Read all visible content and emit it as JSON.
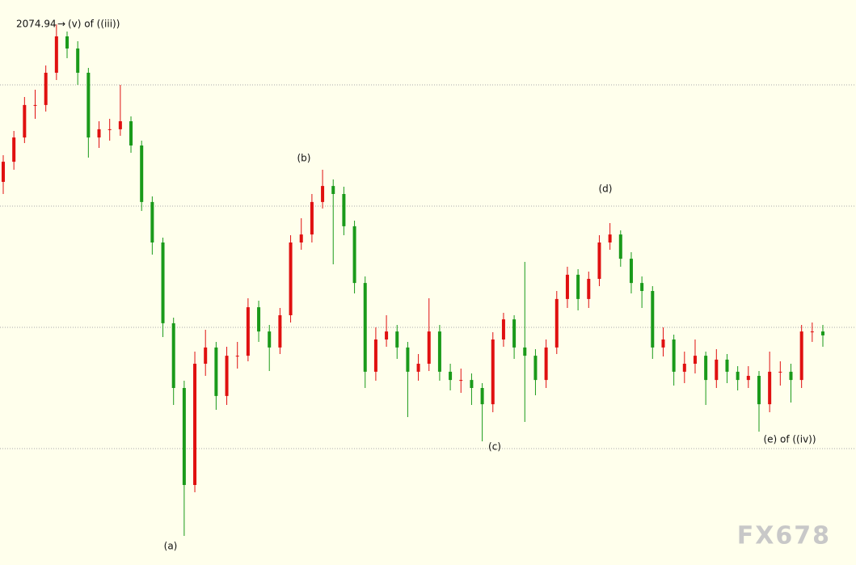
{
  "chart_data": {
    "type": "candlestick",
    "open": [
      2010,
      2018.3,
      2028.3,
      2041.7,
      2041.7,
      2055,
      2070,
      2065,
      2055,
      2028.3,
      2031.7,
      2031.7,
      2035,
      2025,
      2001.7,
      1985,
      1951.7,
      1925,
      1885,
      1935,
      1941.7,
      1921.7,
      1938.3,
      1938.3,
      1958.3,
      1948.3,
      1941.7,
      1955,
      1985,
      1988.3,
      2001.7,
      2008.3,
      2005,
      1991.7,
      1968.3,
      1931.7,
      1945,
      1948.3,
      1941.7,
      1931.7,
      1935,
      1948.3,
      1931.7,
      1928.3,
      1928.3,
      1925,
      1918.3,
      1945,
      1953.3,
      1941.7,
      1938.3,
      1928.3,
      1941.7,
      1961.7,
      1971.7,
      1961.7,
      1970,
      1985,
      1988.3,
      1978.3,
      1968.3,
      1965,
      1941.7,
      1945,
      1931.7,
      1935,
      1938.3,
      1928.3,
      1936.7,
      1931.7,
      1928.3,
      1930,
      1918.3,
      1931.7,
      1931.7,
      1928.3,
      1948.3,
      1948.3
    ],
    "high": [
      2021,
      2031,
      2045,
      2048,
      2058,
      2074.94,
      2072,
      2068,
      2057,
      2035,
      2036,
      2050,
      2037,
      2027,
      2004,
      1987,
      1954,
      1928,
      1940,
      1949,
      1944,
      1942,
      1944,
      1962,
      1961,
      1951,
      1958,
      1988,
      1995,
      2005,
      2015,
      2011,
      2008,
      1994,
      1971,
      1950,
      1955,
      1951,
      1944,
      1939,
      1962,
      1951,
      1935,
      1933,
      1931,
      1927,
      1948,
      1956,
      1955,
      1977,
      1941,
      1945,
      1965,
      1975,
      1974,
      1973,
      1988,
      1993,
      1990,
      1981,
      1971,
      1967,
      1950,
      1947,
      1940,
      1945,
      1940,
      1941,
      1939,
      1934,
      1934,
      1932,
      1940,
      1936,
      1935,
      1951,
      1952,
      1951
    ],
    "low": [
      2005,
      2015,
      2026,
      2036,
      2039,
      2052,
      2061,
      2050,
      2020,
      2024,
      2027,
      2029,
      2022,
      1998,
      1980,
      1946,
      1918,
      1864,
      1882,
      1930,
      1916,
      1918,
      1933,
      1936,
      1944,
      1932,
      1939,
      1952,
      1982,
      1985,
      1999,
      1976,
      1988,
      1964,
      1925,
      1928,
      1942,
      1937,
      1913,
      1928,
      1932,
      1928,
      1924,
      1923,
      1918,
      1903,
      1915,
      1942,
      1937,
      1911,
      1922,
      1925,
      1939,
      1958,
      1957,
      1958,
      1967,
      1982,
      1975,
      1964,
      1958,
      1937,
      1938,
      1926,
      1927,
      1931,
      1918,
      1925,
      1927,
      1924,
      1925,
      1907,
      1915,
      1926,
      1919,
      1925,
      1944,
      1942
    ],
    "close": [
      2018.3,
      2028.3,
      2041.7,
      2041.7,
      2055,
      2070,
      2065,
      2055,
      2028.3,
      2031.7,
      2031.7,
      2035,
      2025,
      2001.7,
      1985,
      1951.7,
      1925,
      1885,
      1935,
      1941.7,
      1921.7,
      1938.3,
      1938.3,
      1958.3,
      1948.3,
      1941.7,
      1955,
      1985,
      1988.3,
      2001.7,
      2008.3,
      2005,
      1991.7,
      1968.3,
      1931.7,
      1945,
      1948.3,
      1941.7,
      1931.7,
      1935,
      1948.3,
      1931.7,
      1928.3,
      1928.3,
      1925,
      1918.3,
      1945,
      1953.3,
      1941.7,
      1938.3,
      1928.3,
      1941.7,
      1961.7,
      1971.7,
      1961.7,
      1970,
      1985,
      1988.3,
      1978.3,
      1968.3,
      1965,
      1941.7,
      1945,
      1931.7,
      1935,
      1938.3,
      1928.3,
      1936.7,
      1931.7,
      1928.3,
      1930,
      1918.3,
      1931.7,
      1931.7,
      1928.3,
      1948.3,
      1948.3,
      1946.7
    ],
    "ylim": [
      1852,
      2085
    ],
    "grid_levels": [
      2050,
      2000,
      1950,
      1900
    ],
    "up_color": "#e01010",
    "down_color": "#1a9a1a",
    "annotations": {
      "v": "(v) of ((iii))",
      "a": "(a)",
      "b": "(b)",
      "c": "(c)",
      "d": "(d)",
      "e": "(e) of ((iv))"
    },
    "watermark": "FX678"
  }
}
